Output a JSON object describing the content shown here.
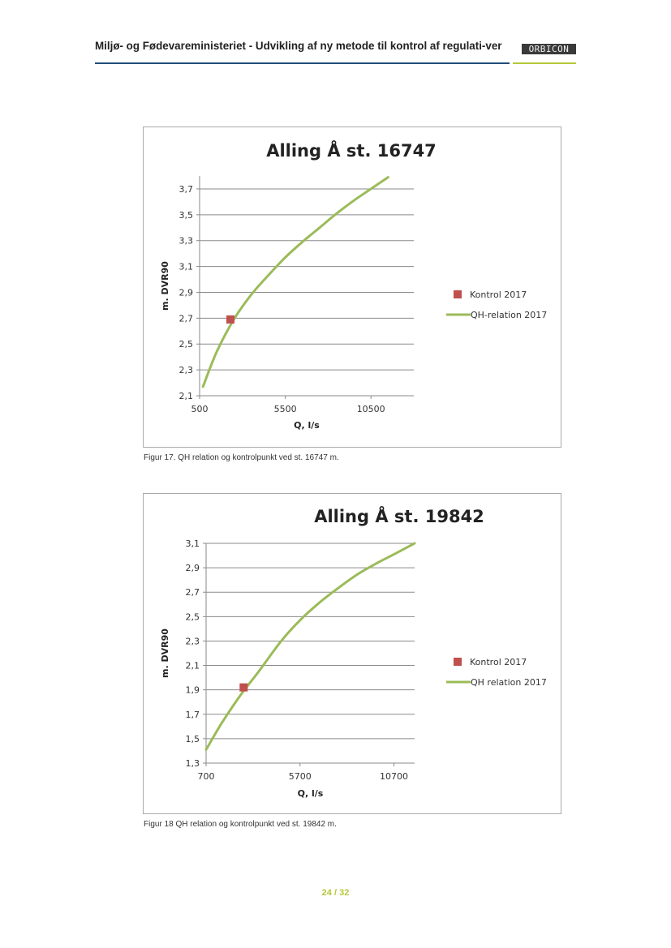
{
  "header": {
    "title": "Miljø- og Fødevareministeriet - Udvikling af ny metode til kontrol af regulati-ver",
    "logo_text": "ORBICON"
  },
  "chart_data": [
    {
      "type": "line",
      "title": "Alling Å st. 16747",
      "xlabel": "Q, l/s",
      "ylabel": "m. DVR90",
      "xlim": [
        500,
        13000
      ],
      "xticks": [
        "500",
        "5500",
        "10500"
      ],
      "xtick_values": [
        500,
        5500,
        10500
      ],
      "ylim": [
        2.1,
        3.8
      ],
      "yticks": [
        "2,1",
        "2,3",
        "2,5",
        "2,7",
        "2,9",
        "3,1",
        "3,3",
        "3,5",
        "3,7"
      ],
      "ytick_values": [
        2.1,
        2.3,
        2.5,
        2.7,
        2.9,
        3.1,
        3.3,
        3.5,
        3.7
      ],
      "grid": true,
      "legend_position": "right",
      "series": [
        {
          "name": "Kontrol 2017",
          "kind": "scatter",
          "color": "#c0504d",
          "x": [
            2300
          ],
          "y": [
            2.69
          ]
        },
        {
          "name": "QH-relation 2017",
          "kind": "line",
          "color": "#9bbb59",
          "x": [
            700,
            1500,
            2500,
            3500,
            4500,
            5500,
            6500,
            7500,
            8500,
            9500,
            10500,
            11500
          ],
          "y": [
            2.17,
            2.44,
            2.69,
            2.88,
            3.03,
            3.17,
            3.29,
            3.4,
            3.51,
            3.61,
            3.7,
            3.79
          ]
        }
      ]
    },
    {
      "type": "line",
      "title": "Alling Å st. 19842",
      "xlabel": "Q, l/s",
      "ylabel": "m. DVR90",
      "xlim": [
        700,
        11800
      ],
      "xticks": [
        "700",
        "5700",
        "10700"
      ],
      "xtick_values": [
        700,
        5700,
        10700
      ],
      "ylim": [
        1.3,
        3.1
      ],
      "yticks": [
        "1,3",
        "1,5",
        "1,7",
        "1,9",
        "2,1",
        "2,3",
        "2,5",
        "2,7",
        "2,9",
        "3,1"
      ],
      "ytick_values": [
        1.3,
        1.5,
        1.7,
        1.9,
        2.1,
        2.3,
        2.5,
        2.7,
        2.9,
        3.1
      ],
      "grid": true,
      "legend_position": "right",
      "series": [
        {
          "name": "Kontrol 2017",
          "kind": "scatter",
          "color": "#c0504d",
          "x": [
            2700
          ],
          "y": [
            1.92
          ]
        },
        {
          "name": "QH relation 2017",
          "kind": "line",
          "color": "#9bbb59",
          "x": [
            700,
            1500,
            2500,
            3500,
            4700,
            5700,
            6700,
            7700,
            8700,
            9700,
            10700,
            11800
          ],
          "y": [
            1.41,
            1.62,
            1.85,
            2.05,
            2.3,
            2.47,
            2.61,
            2.73,
            2.84,
            2.93,
            3.01,
            3.1
          ]
        }
      ]
    }
  ],
  "captions": [
    "Figur 17. QH relation og kontrolpunkt ved st. 16747 m.",
    "Figur 18 QH relation og kontrolpunkt ved st. 19842 m."
  ],
  "page_number": "24 / 32"
}
